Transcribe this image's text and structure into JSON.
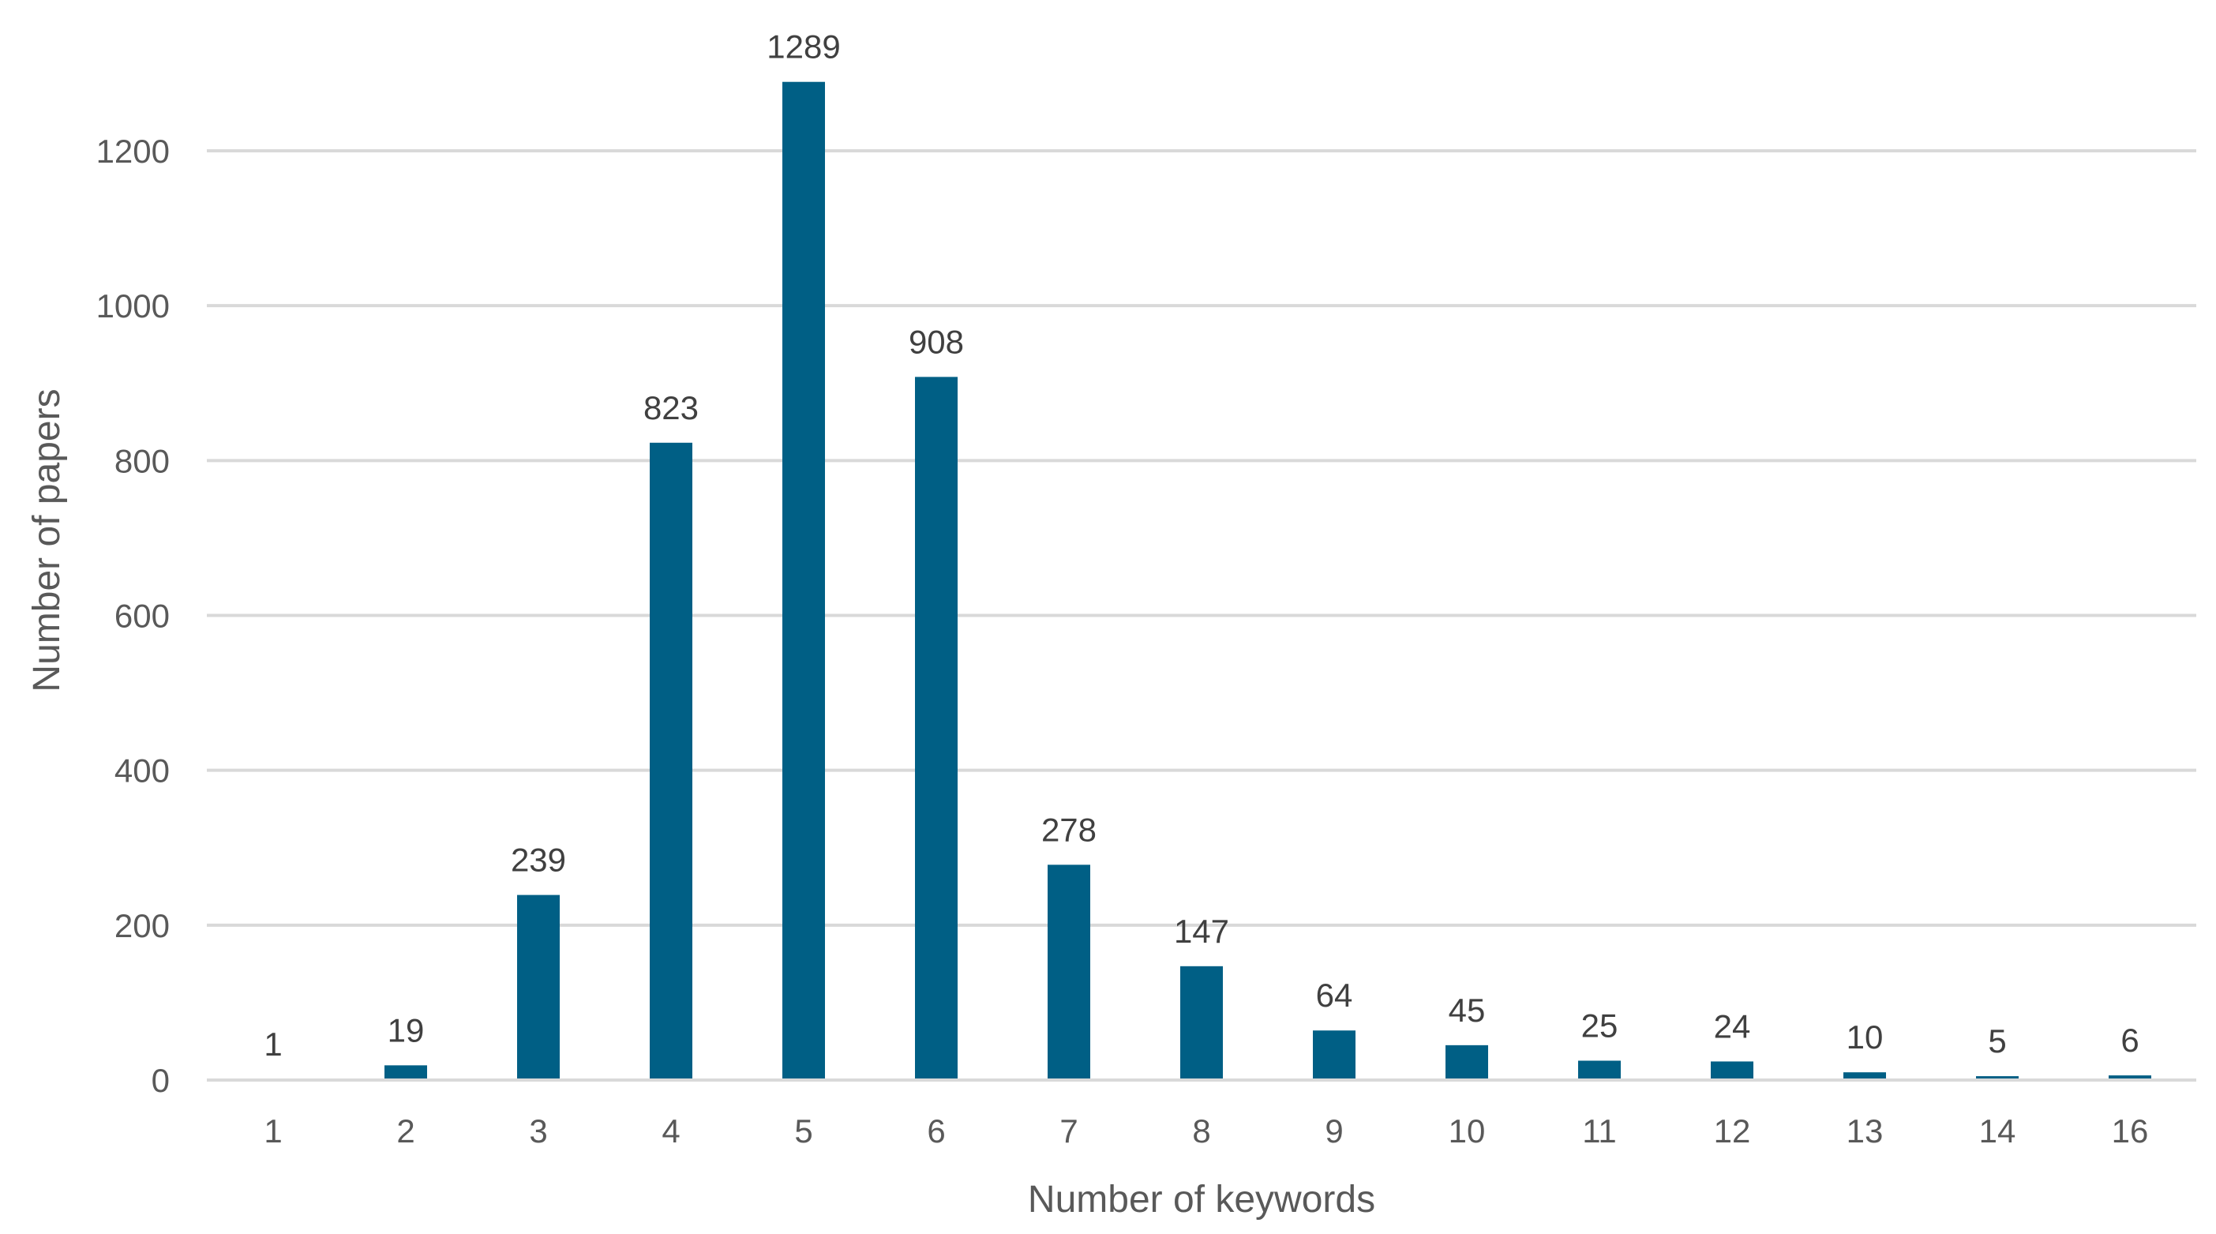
{
  "chart_data": {
    "type": "bar",
    "categories": [
      "1",
      "2",
      "3",
      "4",
      "5",
      "6",
      "7",
      "8",
      "9",
      "10",
      "11",
      "12",
      "13",
      "14",
      "16"
    ],
    "values": [
      1,
      19,
      239,
      823,
      1289,
      908,
      278,
      147,
      64,
      45,
      25,
      24,
      10,
      5,
      6
    ],
    "title": "",
    "xlabel": "Number of keywords",
    "ylabel": "Number of papers",
    "ylim": [
      0,
      1200
    ],
    "yticks": [
      0,
      200,
      400,
      600,
      800,
      1000,
      1200
    ],
    "grid": true,
    "legend": "none",
    "data_labels": true,
    "colors": {
      "bar": "#005F85",
      "grid": "#D9D9D9",
      "tick_text": "#595959",
      "label_text": "#404040"
    }
  }
}
